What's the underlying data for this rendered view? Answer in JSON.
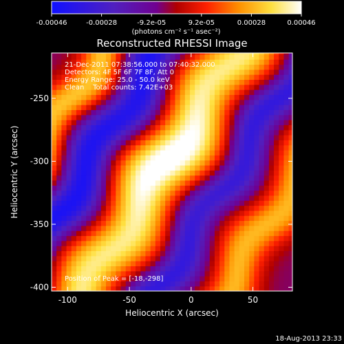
{
  "chart_data": {
    "type": "heatmap",
    "title": "Reconstructed RHESSI Image",
    "xlabel": "Heliocentric X (arcsec)",
    "ylabel": "Heliocentric Y (arcsec)",
    "xlim": [
      -113,
      82
    ],
    "ylim": [
      -403,
      -214
    ],
    "xticks": [
      -100,
      -50,
      0,
      50
    ],
    "yticks": [
      -250,
      -300,
      -350,
      -400
    ],
    "colorbar": {
      "label": "(photons cm⁻² s⁻¹ asec⁻²)",
      "ticks": [
        "-0.00046",
        "-0.00028",
        "-9.2e-05",
        "9.2e-05",
        "0.00028",
        "0.00046"
      ],
      "range": [
        -0.00046,
        0.00046
      ],
      "colormap": "blue-purple-red-orange-yellow-white"
    },
    "annotations": [
      "21-Dec-2011 07:38:56.000 to 07:40:32.000",
      "Detectors: 4F 5F 6F 7F 8F, Att 0",
      "Energy Range: 25.0 - 50.0 keV",
      "Clean    Total counts: 7.42E+03"
    ],
    "peak_label": "Position of Peak = [-18,-298]",
    "peak": {
      "x": -18,
      "y": -298,
      "value": 0.00046
    },
    "structure_bands": [
      {
        "name": "central bright band",
        "angle_deg": 57,
        "offset": 0,
        "width": 36,
        "amp": 0.00044
      },
      {
        "name": "upper-left bright band",
        "angle_deg": 57,
        "offset": -95,
        "width": 28,
        "amp": 0.00034
      },
      {
        "name": "right bright band",
        "angle_deg": 57,
        "offset": 92,
        "width": 26,
        "amp": 0.00036
      },
      {
        "name": "dark band left",
        "angle_deg": 57,
        "offset": -48,
        "width": 22,
        "amp": -0.0003
      },
      {
        "name": "dark band right",
        "angle_deg": 57,
        "offset": 52,
        "width": 26,
        "amp": -0.00038
      }
    ]
  },
  "footer": {
    "timestamp": "18-Aug-2013 23:33"
  },
  "colors": {
    "background": "#000000",
    "text": "#ffffff"
  }
}
